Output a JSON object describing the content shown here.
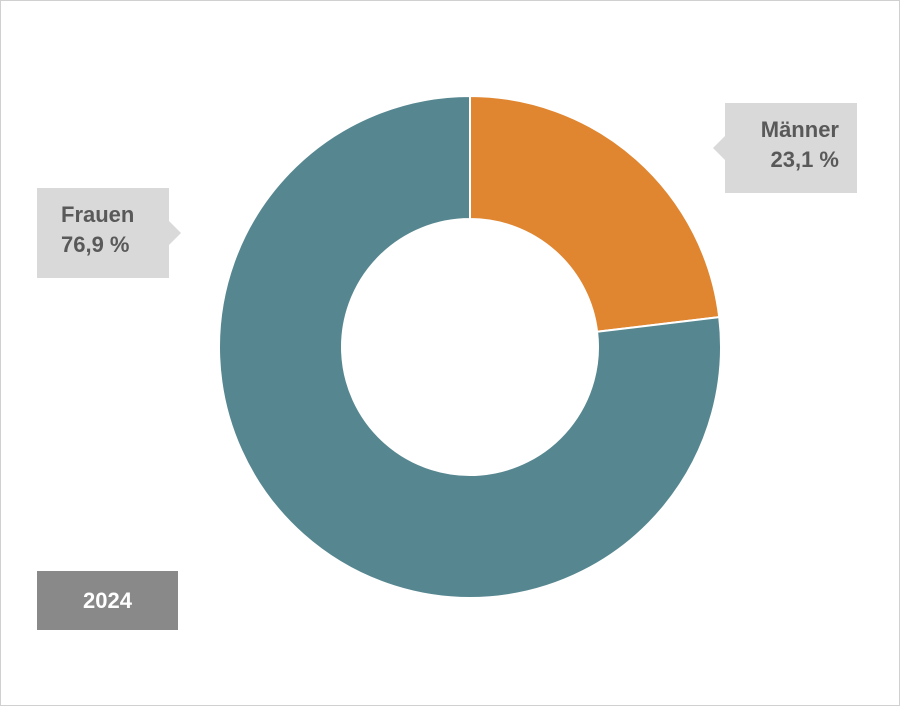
{
  "chart_data": {
    "type": "pie",
    "donut": true,
    "year": "2024",
    "categories": [
      "Männer",
      "Frauen"
    ],
    "values": [
      23.1,
      76.9
    ],
    "value_labels": [
      "23,1 %",
      "76,9 %"
    ],
    "colors": [
      "#e08530",
      "#568790"
    ],
    "legend": "none"
  }
}
